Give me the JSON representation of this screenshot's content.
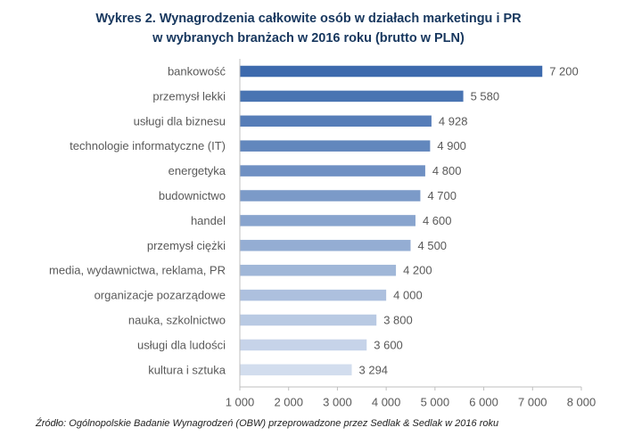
{
  "chart_data": {
    "type": "bar",
    "orientation": "horizontal",
    "title": "Wykres 2. Wynagrodzenia całkowite osób w działach marketingu i PR",
    "subtitle": "w wybranych branżach w 2016 roku (brutto w PLN)",
    "categories": [
      "bankowość",
      "przemysł lekki",
      "usługi dla biznesu",
      "technologie informatyczne (IT)",
      "energetyka",
      "budownictwo",
      "handel",
      "przemysł ciężki",
      "media, wydawnictwa, reklama, PR",
      "organizacje pozarządowe",
      "nauka, szkolnictwo",
      "usługi dla ludości",
      "kultura i sztuka"
    ],
    "values": [
      7200,
      5580,
      4928,
      4900,
      4800,
      4700,
      4600,
      4500,
      4200,
      4000,
      3800,
      3600,
      3294
    ],
    "value_labels": [
      "7 200",
      "5 580",
      "4 928",
      "4 900",
      "4 800",
      "4 700",
      "4 600",
      "4 500",
      "4 200",
      "4 000",
      "3 800",
      "3 600",
      "3 294"
    ],
    "xlim": [
      1000,
      8000
    ],
    "xticks": [
      1000,
      2000,
      3000,
      4000,
      5000,
      6000,
      7000,
      8000
    ],
    "xtick_labels": [
      "1 000",
      "2 000",
      "3 000",
      "4 000",
      "5 000",
      "6 000",
      "7 000",
      "8 000"
    ],
    "grid": false,
    "colors": {
      "bar_dark": "#3d6aad",
      "bar_light": "#d2ddee",
      "title": "#17375e",
      "axis_text": "#595959",
      "axis_line": "#bfbfbf"
    }
  },
  "source": "Źródło: Ogólnopolskie Badanie Wynagrodzeń (OBW) przeprowadzone  przez Sedlak & Sedlak w 2016 roku"
}
